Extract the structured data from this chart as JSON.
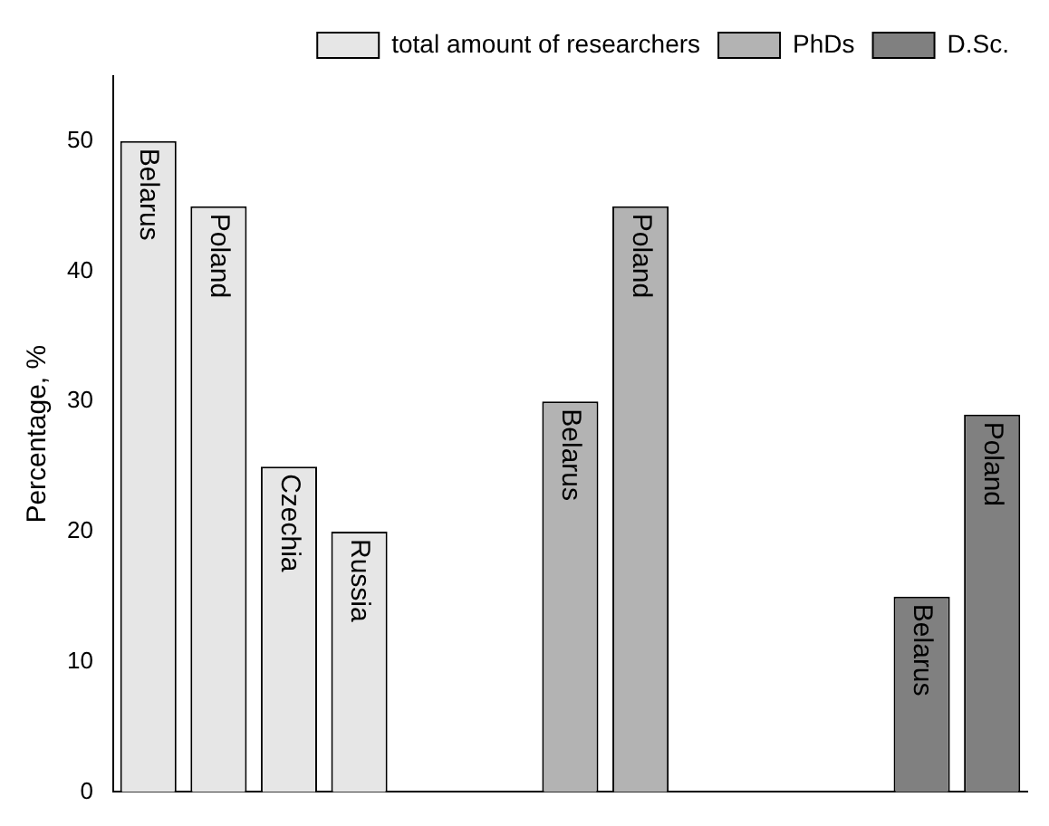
{
  "chart_data": {
    "type": "bar",
    "ylabel": "Percentage, %",
    "categories": [
      null,
      null,
      null,
      null,
      null,
      null,
      null,
      null,
      null,
      null,
      null,
      null,
      null
    ],
    "series": [
      {
        "name": "total amount of researchers",
        "color": "#e6e6e6",
        "values": [
          50,
          45,
          25,
          20,
          null,
          null,
          null,
          null,
          null,
          null,
          null,
          null,
          null
        ],
        "value_labels": [
          "Belarus",
          "Poland",
          "Czechia",
          "Russia",
          null,
          null,
          null,
          null,
          null,
          null,
          null,
          null,
          null
        ]
      },
      {
        "name": "PhDs",
        "color": "#b3b3b3",
        "values": [
          null,
          null,
          null,
          null,
          null,
          null,
          30,
          45,
          null,
          null,
          null,
          null,
          null
        ],
        "value_labels": [
          null,
          null,
          null,
          null,
          null,
          null,
          "Belarus",
          "Poland",
          null,
          null,
          null,
          null,
          null
        ]
      },
      {
        "name": "D.Sc.",
        "color": "#808080",
        "values": [
          null,
          null,
          null,
          null,
          null,
          null,
          null,
          null,
          null,
          null,
          null,
          15,
          29
        ],
        "value_labels": [
          null,
          null,
          null,
          null,
          null,
          null,
          null,
          null,
          null,
          null,
          null,
          "Belarus",
          "Poland"
        ]
      }
    ],
    "ylim": [
      0,
      55
    ],
    "yticks": [
      0,
      10,
      20,
      30,
      40,
      50
    ],
    "grid": false,
    "legend": "top right"
  }
}
